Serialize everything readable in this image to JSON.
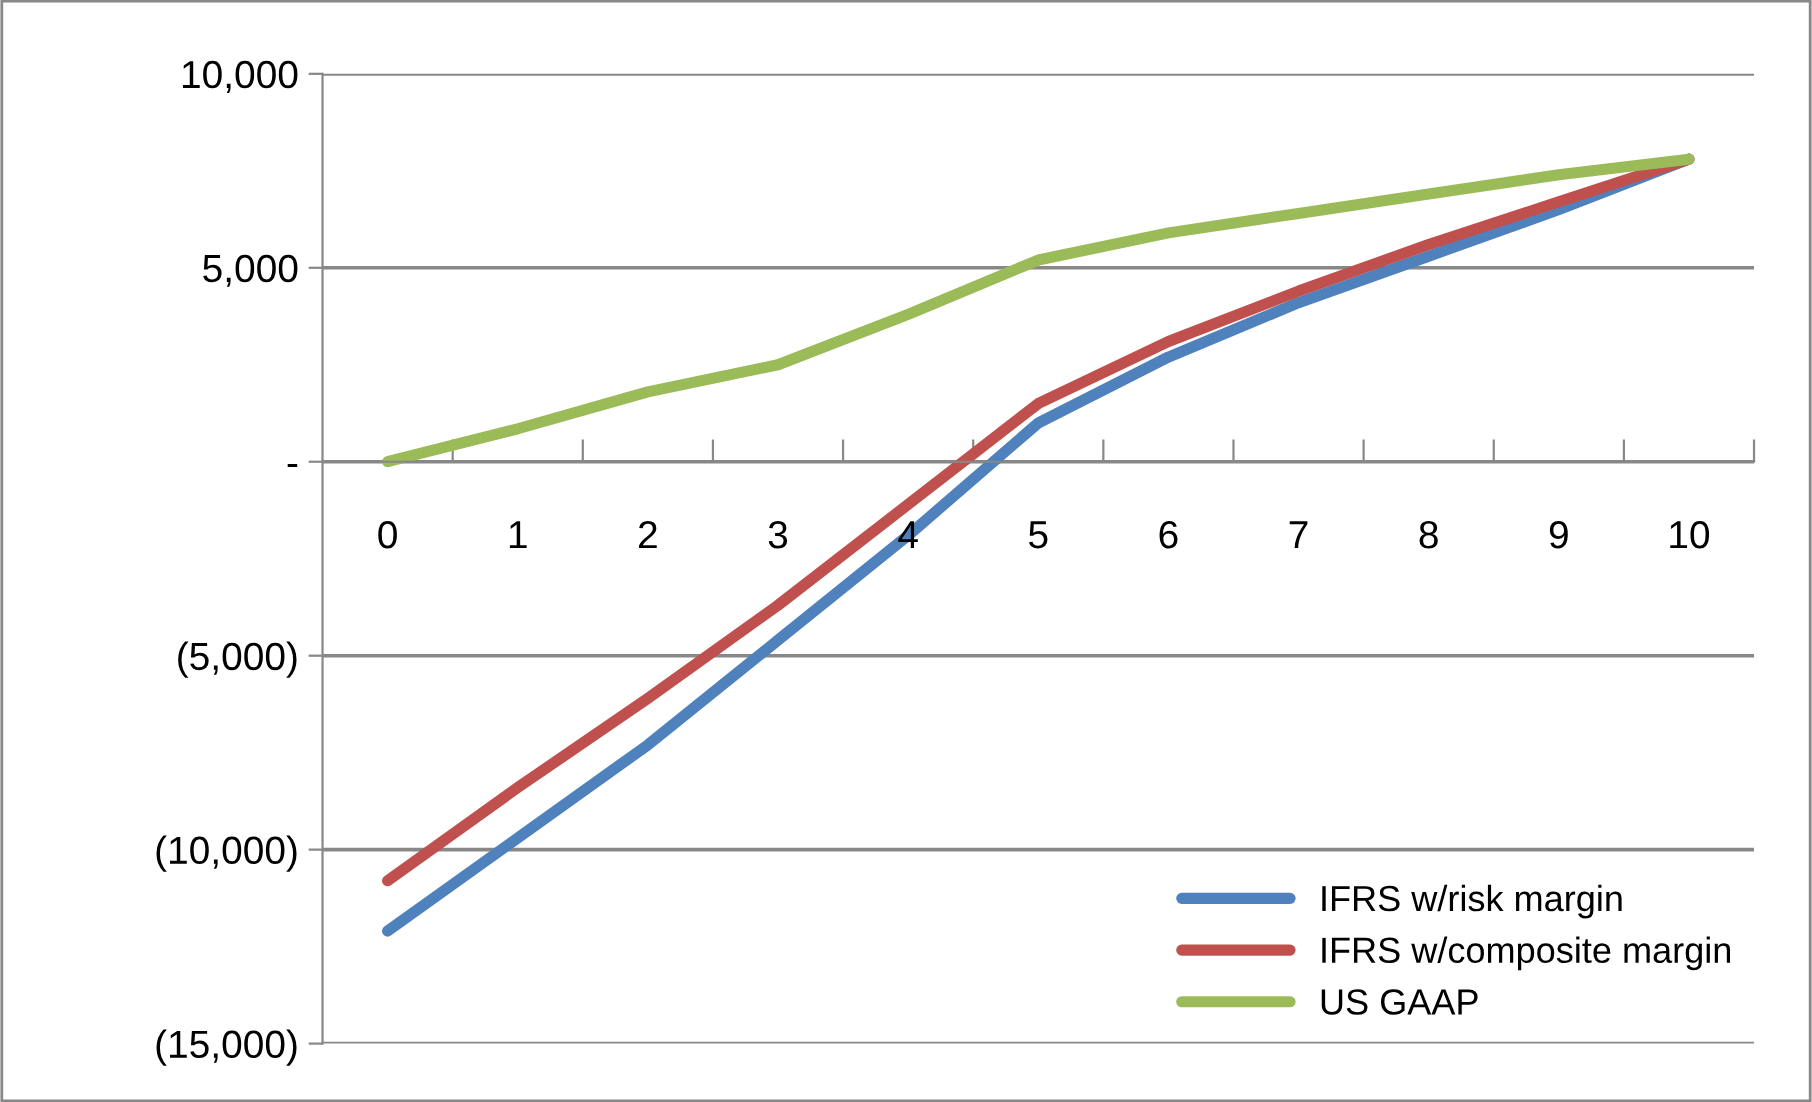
{
  "chart_data": {
    "type": "line",
    "categories": [
      "0",
      "1",
      "2",
      "3",
      "4",
      "5",
      "6",
      "7",
      "8",
      "9",
      "10"
    ],
    "series": [
      {
        "name": "IFRS w/risk margin",
        "color": "#4f81bd",
        "values": [
          -12100,
          -9700,
          -7300,
          -4600,
          -1900,
          1000,
          2700,
          4100,
          5300,
          6500,
          7800
        ]
      },
      {
        "name": "IFRS w/composite margin",
        "color": "#c0504d",
        "values": [
          -10800,
          -8400,
          -6100,
          -3700,
          -1100,
          1500,
          3100,
          4400,
          5600,
          6700,
          7800
        ]
      },
      {
        "name": "US GAAP",
        "color": "#9bbb59",
        "values": [
          0,
          850,
          1800,
          2500,
          3800,
          5200,
          5900,
          6400,
          6900,
          7400,
          7800
        ]
      }
    ],
    "ylim": [
      -15000,
      10000
    ],
    "yticks": [
      {
        "value": -15000,
        "label": "(15,000)"
      },
      {
        "value": -10000,
        "label": "(10,000)"
      },
      {
        "value": -5000,
        "label": "(5,000)"
      },
      {
        "value": 0,
        "label": "-"
      },
      {
        "value": 5000,
        "label": "5,000"
      },
      {
        "value": 10000,
        "label": "10,000"
      }
    ],
    "grid": "y",
    "legend": "bottom right",
    "marker": "none",
    "line_style": "solid"
  }
}
